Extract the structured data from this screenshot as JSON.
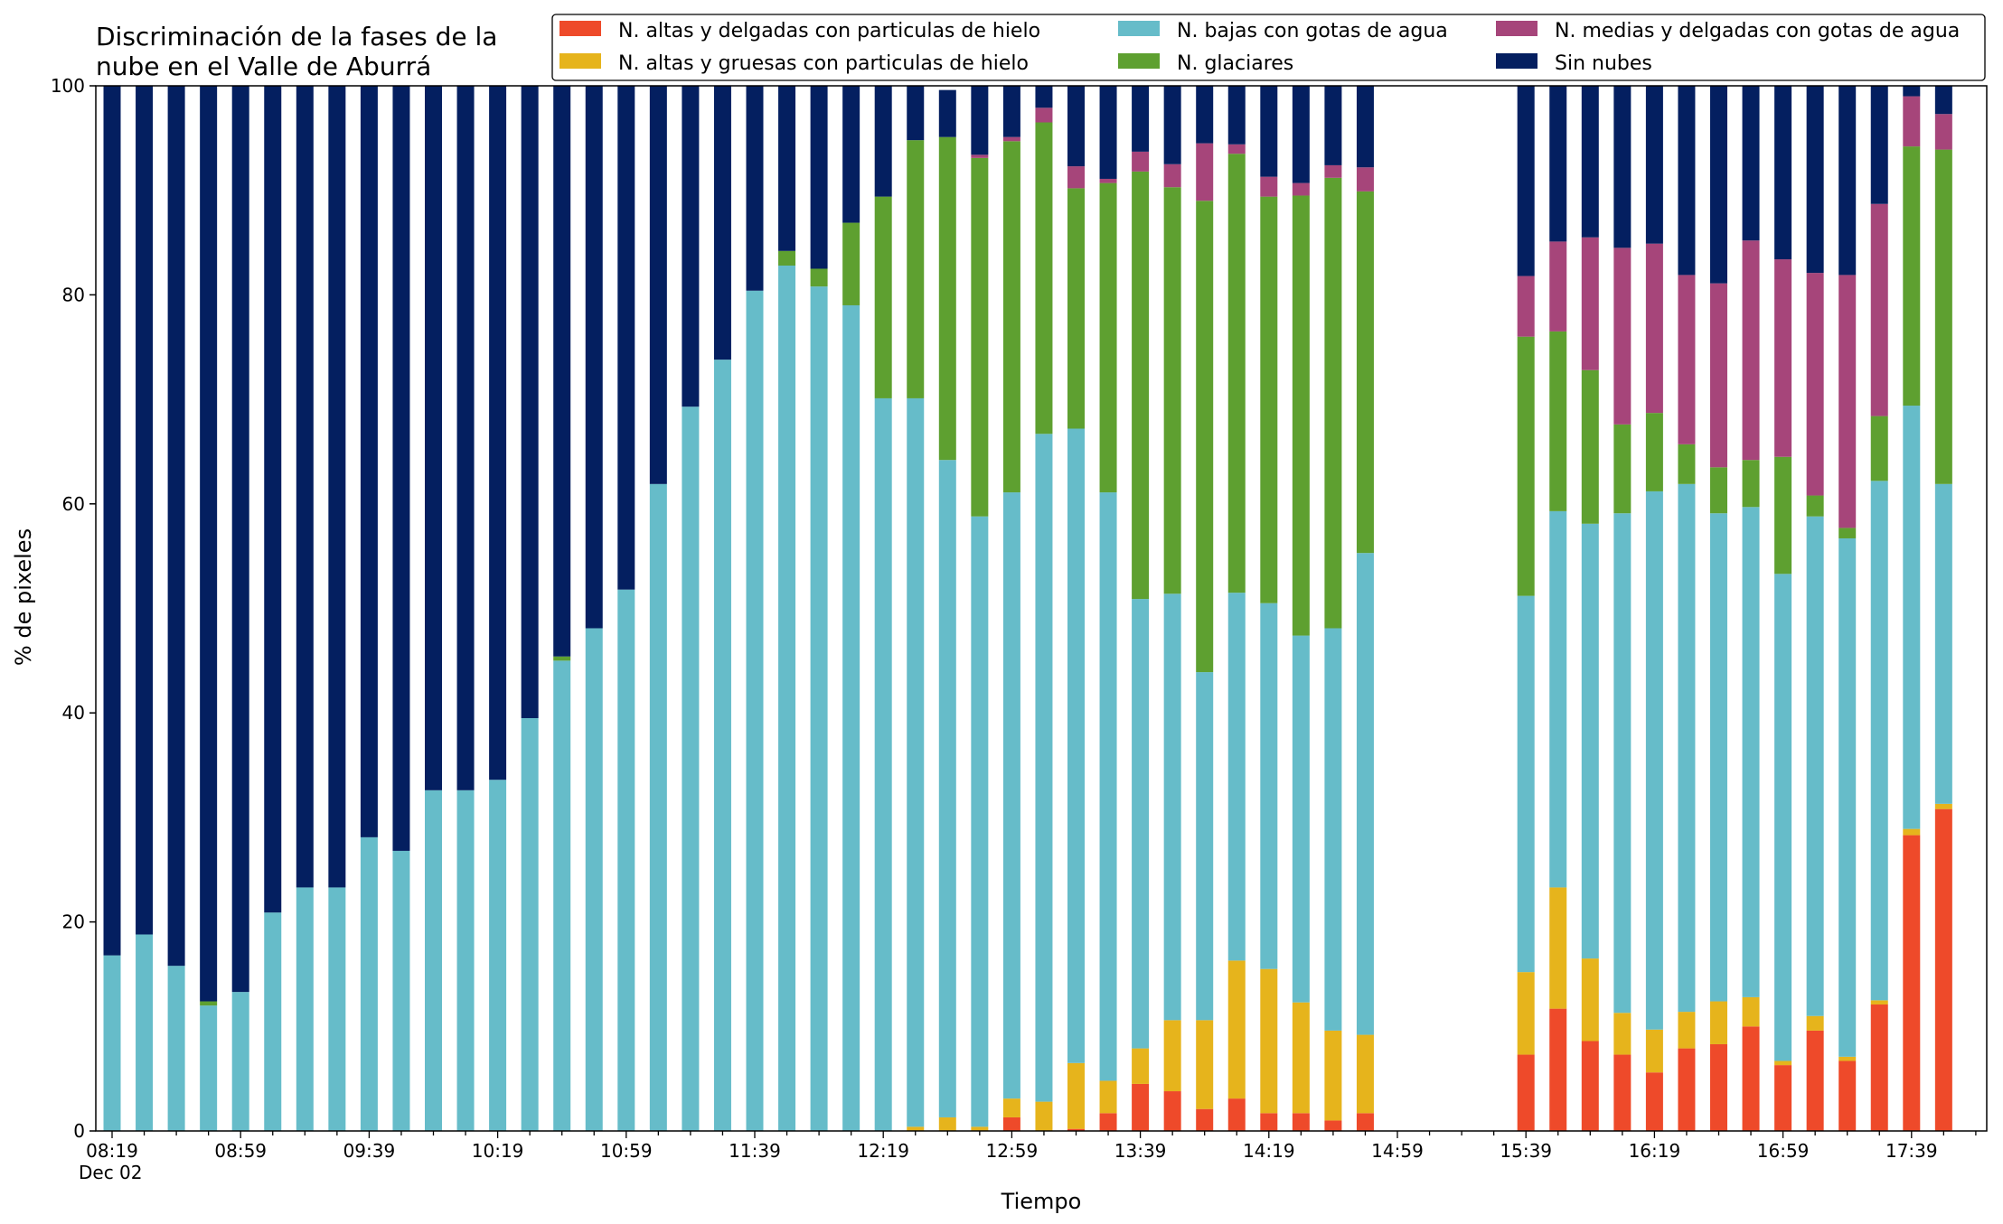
{
  "chart_data": {
    "type": "bar",
    "stacked": true,
    "title_lines": [
      "Discriminación de la fases de la",
      "nube en el Valle de Aburrá"
    ],
    "xlabel": "Tiempo",
    "ylabel": "% de pixeles",
    "ylim": [
      0,
      100
    ],
    "yticks": [
      0,
      20,
      40,
      60,
      80,
      100
    ],
    "date_label": "Dec 02",
    "grid": false,
    "legend_position": "top-right",
    "xtick_labels": [
      "08:19",
      "08:59",
      "09:39",
      "10:19",
      "10:59",
      "11:39",
      "12:19",
      "12:59",
      "13:39",
      "14:19",
      "14:59",
      "15:39",
      "16:19",
      "16:59",
      "17:39"
    ],
    "categories": [
      "08:19",
      "08:29",
      "08:39",
      "08:49",
      "08:59",
      "09:09",
      "09:19",
      "09:29",
      "09:39",
      "09:49",
      "09:59",
      "10:09",
      "10:19",
      "10:29",
      "10:39",
      "10:49",
      "10:59",
      "11:09",
      "11:19",
      "11:29",
      "11:39",
      "11:49",
      "11:59",
      "12:09",
      "12:19",
      "12:29",
      "12:39",
      "12:49",
      "12:59",
      "13:09",
      "13:19",
      "13:29",
      "13:39",
      "13:49",
      "13:59",
      "14:09",
      "14:19",
      "14:29",
      "14:39",
      "14:49",
      "14:59",
      "15:09",
      "15:19",
      "15:29",
      "15:39",
      "15:49",
      "15:59",
      "16:09",
      "16:19",
      "16:29",
      "16:39",
      "16:49",
      "16:59",
      "17:09",
      "17:19",
      "17:29",
      "17:39",
      "17:49"
    ],
    "series": [
      {
        "name": "N. altas y delgadas con particulas de hielo",
        "color": "#ee4a2a",
        "values": [
          0,
          0,
          0,
          0,
          0,
          0,
          0,
          0,
          0,
          0,
          0,
          0,
          0,
          0,
          0,
          0,
          0,
          0,
          0,
          0,
          0,
          0,
          0,
          0,
          0,
          0,
          0,
          0,
          1.3,
          0,
          0.2,
          1.7,
          4.5,
          3.8,
          2.1,
          3.1,
          1.7,
          1.7,
          1,
          1.7,
          null,
          null,
          null,
          null,
          7.3,
          11.7,
          8.6,
          7.3,
          5.6,
          7.9,
          8.3,
          10,
          6.3,
          9.6,
          6.7,
          12.1,
          28.3,
          30.8
        ]
      },
      {
        "name": "N. altas y gruesas con particulas de hielo",
        "color": "#e6b41c",
        "values": [
          0,
          0,
          0,
          0,
          0,
          0,
          0,
          0,
          0,
          0,
          0,
          0,
          0,
          0,
          0,
          0,
          0,
          0,
          0,
          0,
          0,
          0,
          0,
          0,
          0,
          0.4,
          1.3,
          0.4,
          1.8,
          2.8,
          6.3,
          3.1,
          3.4,
          6.8,
          8.5,
          13.2,
          13.8,
          10.6,
          8.6,
          7.5,
          null,
          null,
          null,
          null,
          7.9,
          11.6,
          7.9,
          4,
          4.1,
          3.5,
          4.1,
          2.8,
          0.4,
          1.4,
          0.4,
          0.4,
          0.6,
          0.5
        ]
      },
      {
        "name": "N. bajas con gotas de agua",
        "color": "#66bcc9",
        "values": [
          16.8,
          18.8,
          15.8,
          12,
          13.3,
          20.9,
          23.3,
          23.3,
          28.1,
          26.8,
          32.6,
          32.6,
          33.6,
          39.5,
          45,
          48.1,
          51.8,
          61.9,
          69.3,
          73.8,
          80.4,
          82.8,
          80.8,
          79,
          70.1,
          69.7,
          62.9,
          58.4,
          58,
          63.9,
          60.7,
          56.3,
          43,
          40.8,
          33.3,
          35.2,
          35,
          35.1,
          38.5,
          46.1,
          null,
          null,
          null,
          null,
          36,
          36,
          41.6,
          47.8,
          51.5,
          50.5,
          46.7,
          46.9,
          46.6,
          47.8,
          49.6,
          49.7,
          40.5,
          30.6
        ]
      },
      {
        "name": "N. glaciares",
        "color": "#5ea030",
        "values": [
          0,
          0,
          0,
          0.4,
          0,
          0,
          0,
          0,
          0,
          0,
          0,
          0,
          0,
          0,
          0.4,
          0,
          0,
          0,
          0,
          0,
          0,
          1.4,
          1.7,
          7.9,
          19.3,
          24.7,
          30.9,
          34.3,
          33.6,
          29.8,
          23,
          29.6,
          40.9,
          38.9,
          45.1,
          42,
          38.9,
          42.1,
          43.1,
          34.6,
          null,
          null,
          null,
          null,
          24.8,
          17.2,
          14.7,
          8.5,
          7.5,
          3.8,
          4.4,
          4.5,
          11.2,
          2,
          1,
          6.2,
          24.8,
          32
        ]
      },
      {
        "name": "N. medias y delgadas con gotas de agua",
        "color": "#a6457a",
        "values": [
          0,
          0,
          0,
          0,
          0,
          0,
          0,
          0,
          0,
          0,
          0,
          0,
          0,
          0,
          0,
          0,
          0,
          0,
          0,
          0,
          0,
          0,
          0,
          0,
          0,
          0,
          0,
          0.3,
          0.4,
          1.4,
          2.1,
          0.4,
          1.9,
          2.2,
          5.5,
          0.9,
          1.9,
          1.2,
          1.2,
          2.3,
          null,
          null,
          null,
          null,
          5.8,
          8.6,
          12.7,
          16.9,
          16.2,
          16.2,
          17.6,
          21,
          18.9,
          21.3,
          24.2,
          20.3,
          4.8,
          3.4
        ]
      },
      {
        "name": "Sin nubes",
        "color": "#041f60",
        "values": [
          83.2,
          81.2,
          84.2,
          87.6,
          86.7,
          79.1,
          76.7,
          76.7,
          71.9,
          73.2,
          67.4,
          67.4,
          66.4,
          60.5,
          54.6,
          51.9,
          48.2,
          38.1,
          30.7,
          26.2,
          19.6,
          15.8,
          17.5,
          13.1,
          10.6,
          5.2,
          4.5,
          6.6,
          4.9,
          2.1,
          7.7,
          8.9,
          6.3,
          7.5,
          5.5,
          5.6,
          8.7,
          9.3,
          7.6,
          7.8,
          null,
          null,
          null,
          null,
          18.2,
          14.9,
          14.5,
          15.5,
          15.1,
          18.1,
          18.9,
          14.8,
          16.6,
          17.9,
          18.1,
          11.3,
          1,
          2.7
        ]
      }
    ]
  }
}
